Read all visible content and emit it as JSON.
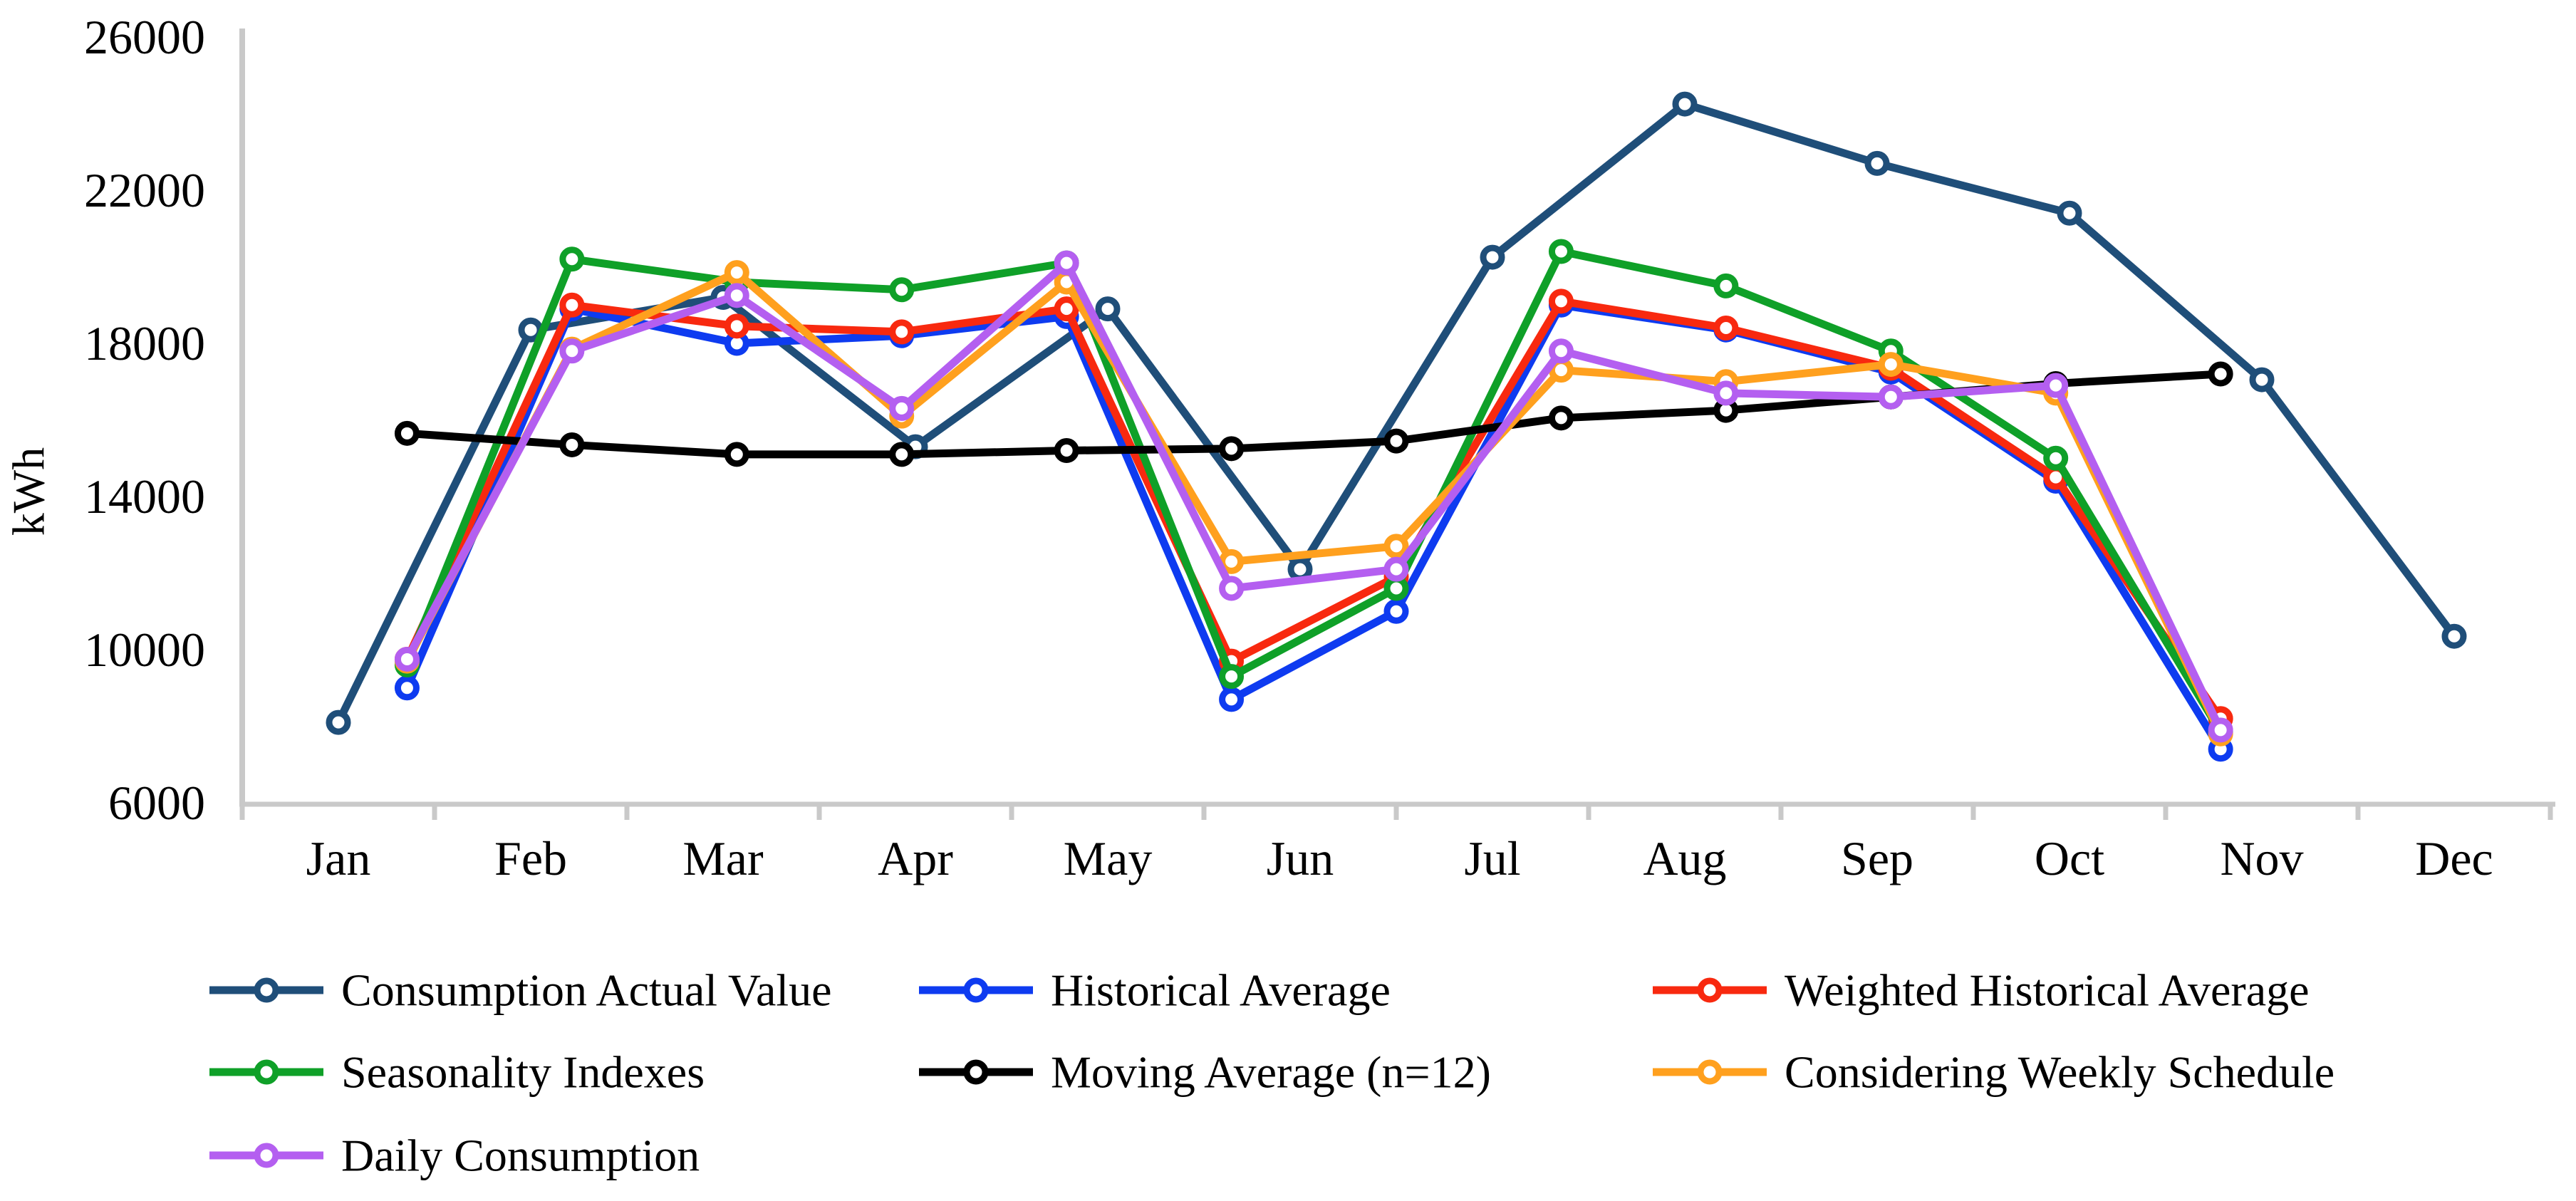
{
  "chart_data": {
    "type": "line",
    "title": "",
    "ylabel": "kWh",
    "xlabel": "",
    "ylim": [
      6000,
      26000
    ],
    "y_tick_step": 4000,
    "y_ticks": [
      "26000",
      "22000",
      "18000",
      "14000",
      "10000",
      "6000"
    ],
    "y_tick_values": [
      26000,
      22000,
      18000,
      14000,
      10000,
      6000
    ],
    "categories": [
      "Jan",
      "Feb",
      "Mar",
      "Apr",
      "May",
      "Jun",
      "Jul",
      "Aug",
      "Sep",
      "Oct",
      "Nov",
      "Dec"
    ],
    "grid": "off",
    "legend_position": "bottom",
    "marker": "open-circle",
    "x_models": {
      "month": "points centered on each month band (12 bands)",
      "offset": "points on a 14-slot grid using slots 1-12, shifted right of month centers"
    },
    "series": [
      {
        "id": "actual",
        "name": "Consumption Actual Value",
        "color": "#1F4E79",
        "x_alignment": "month",
        "values": [
          8100,
          18350,
          19200,
          15300,
          18900,
          12100,
          20250,
          24250,
          22700,
          21400,
          17050,
          10350
        ]
      },
      {
        "id": "historical",
        "name": "Historical Average",
        "color": "#0E3BF0",
        "x_alignment": "offset",
        "values": [
          9000,
          18900,
          18000,
          18200,
          18700,
          8700,
          11000,
          19000,
          18350,
          17250,
          14400,
          7400
        ]
      },
      {
        "id": "weighted",
        "name": "Weighted Historical Average",
        "color": "#F8290F",
        "x_alignment": "offset",
        "values": [
          9750,
          19000,
          18450,
          18300,
          18900,
          9700,
          11900,
          19100,
          18400,
          17350,
          14500,
          8200
        ]
      },
      {
        "id": "seasonality",
        "name": "Seasonality Indexes",
        "color": "#0FA028",
        "x_alignment": "offset",
        "values": [
          9600,
          20200,
          19600,
          19400,
          20100,
          9300,
          11600,
          20400,
          19500,
          17800,
          15000,
          7850
        ]
      },
      {
        "id": "moving",
        "name": "Moving Average (n=12)",
        "color": "#000000",
        "x_alignment": "offset",
        "values": [
          15650,
          15350,
          15100,
          15100,
          15200,
          15250,
          15450,
          16050,
          16250,
          16600,
          16950,
          17200
        ]
      },
      {
        "id": "weekly",
        "name": "Considering Weekly Schedule",
        "color": "#FFA01E",
        "x_alignment": "offset",
        "values": [
          9700,
          17850,
          19850,
          16100,
          19600,
          12300,
          12700,
          17300,
          17000,
          17450,
          16700,
          7800
        ]
      },
      {
        "id": "daily",
        "name": "Daily Consumption",
        "color": "#B45FF0",
        "x_alignment": "offset",
        "values": [
          9750,
          17800,
          19250,
          16300,
          20100,
          11600,
          12100,
          17800,
          16700,
          16600,
          16900,
          7900
        ]
      }
    ],
    "legend": {
      "columns": 3,
      "items": [
        "Consumption Actual Value",
        "Historical Average",
        "Weighted Historical Average",
        "Seasonality Indexes",
        "Moving Average (n=12)",
        "Considering Weekly Schedule",
        "Daily Consumption"
      ]
    },
    "axis_color": "#C9C9C9",
    "text_color": "#000000"
  }
}
